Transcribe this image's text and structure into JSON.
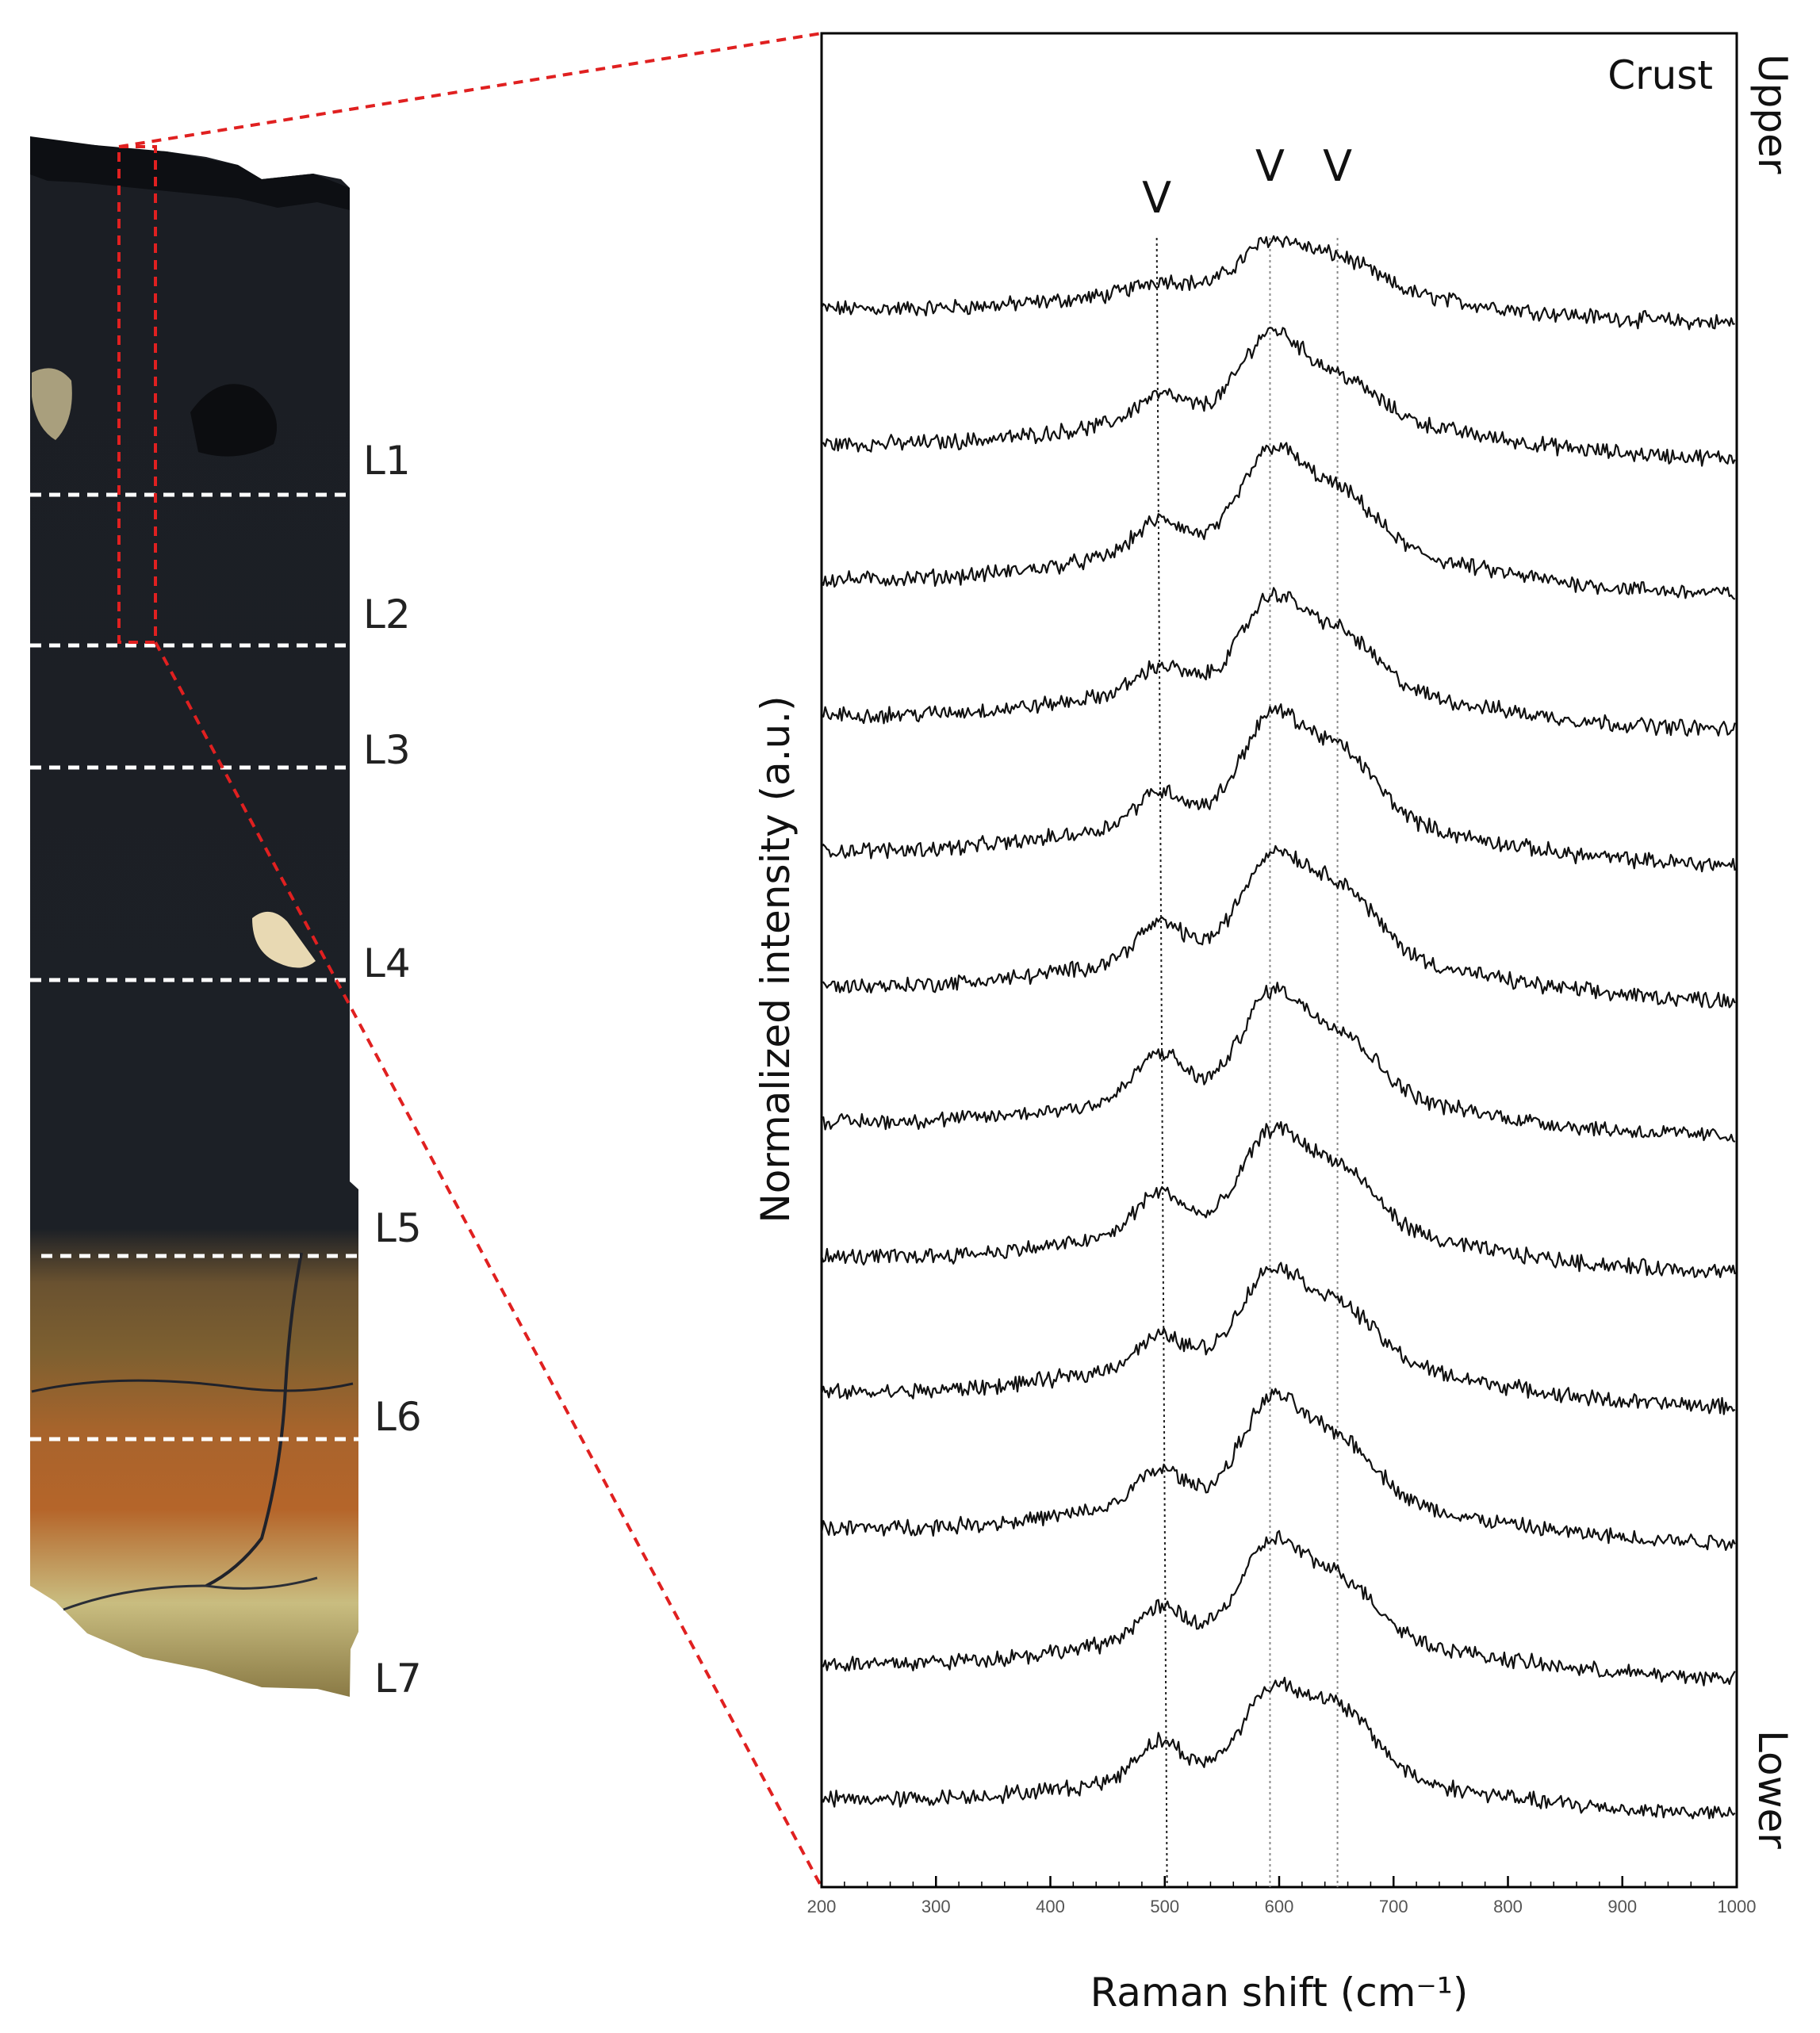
{
  "sample": {
    "layers": [
      {
        "label": "L1",
        "relative_depth": 0.186
      },
      {
        "label": "L2",
        "relative_depth": 0.282
      },
      {
        "label": "L3",
        "relative_depth": 0.367
      },
      {
        "label": "L4",
        "relative_depth": 0.498
      },
      {
        "label": "L5",
        "relative_depth": 0.661
      },
      {
        "label": "L6",
        "relative_depth": 0.777
      },
      {
        "label": "L7",
        "relative_depth": 0.935
      }
    ],
    "colors": {
      "dark_crust": "#1b1e24",
      "tan_zone": "#8a6a3a",
      "rust": "#b5652a",
      "pale": "#c9bd80",
      "callout": "#e02020"
    }
  },
  "chart_data": {
    "type": "line",
    "xlabel": "Raman shift (cm⁻¹)",
    "ylabel": "Normalized intensity (a.u.)",
    "xlim": [
      200,
      1000
    ],
    "xticks": [
      200,
      300,
      400,
      500,
      600,
      700,
      800,
      900,
      1000
    ],
    "corner_labels": {
      "top": "Crust",
      "right_top": "Upper",
      "right_bottom": "Lower"
    },
    "marker_label": "V",
    "markers": [
      {
        "label": "V",
        "x_top": 493,
        "x_bottom": 502
      },
      {
        "label": "V",
        "x_top": 592,
        "x_bottom": 592
      },
      {
        "label": "V",
        "x_top": 651,
        "x_bottom": 651
      }
    ],
    "peaks_x": [
      495,
      592,
      651
    ],
    "series": [
      {
        "p1": 0.15,
        "p2": 0.55,
        "p3": 0.45,
        "bg": 0.3
      },
      {
        "p1": 0.35,
        "p2": 1.0,
        "p3": 0.55,
        "bg": 0.4
      },
      {
        "p1": 0.45,
        "p2": 1.15,
        "p3": 0.8,
        "bg": 0.45
      },
      {
        "p1": 0.35,
        "p2": 1.05,
        "p3": 0.8,
        "bg": 0.4
      },
      {
        "p1": 0.45,
        "p2": 1.2,
        "p3": 1.0,
        "bg": 0.45
      },
      {
        "p1": 0.5,
        "p2": 1.15,
        "p3": 1.0,
        "bg": 0.45
      },
      {
        "p1": 0.65,
        "p2": 1.2,
        "p3": 0.9,
        "bg": 0.4
      },
      {
        "p1": 0.6,
        "p2": 1.15,
        "p3": 0.9,
        "bg": 0.4
      },
      {
        "p1": 0.4,
        "p2": 1.05,
        "p3": 0.8,
        "bg": 0.45
      },
      {
        "p1": 0.5,
        "p2": 1.2,
        "p3": 0.9,
        "bg": 0.4
      },
      {
        "p1": 0.45,
        "p2": 1.1,
        "p3": 0.85,
        "bg": 0.4
      },
      {
        "p1": 0.55,
        "p2": 1.0,
        "p3": 1.0,
        "bg": 0.35
      }
    ]
  }
}
